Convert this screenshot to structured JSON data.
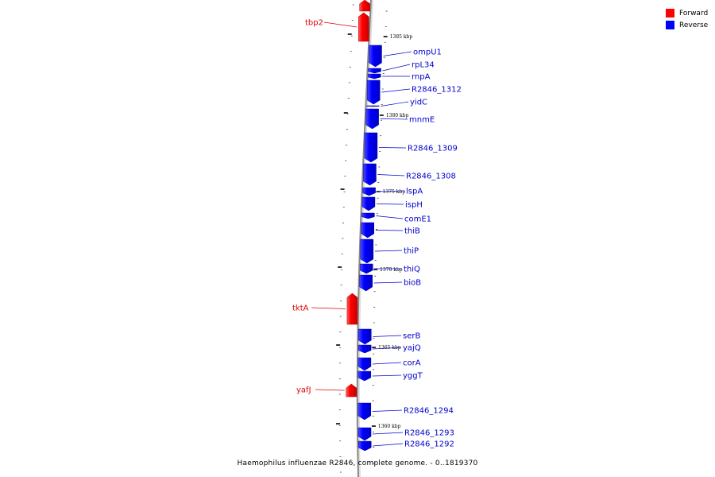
{
  "legend": {
    "forward_label": "Forward",
    "reverse_label": "Reverse",
    "forward_color": "#ff0000",
    "reverse_color": "#0000ff"
  },
  "caption": "Haemophilus influenzae R2846, complete genome. - 0..1819370",
  "ticks": [
    {
      "label": "1385 kbp"
    },
    {
      "label": "1380 kbp"
    },
    {
      "label": "1375 kbp"
    },
    {
      "label": "1370 kbp"
    },
    {
      "label": "1365 kbp"
    },
    {
      "label": "1360 kbp"
    }
  ],
  "genes": [
    {
      "name": "",
      "strand": "forward"
    },
    {
      "name": "tbp2",
      "strand": "forward"
    },
    {
      "name": "ompU1",
      "strand": "reverse"
    },
    {
      "name": "rpL34",
      "strand": "reverse"
    },
    {
      "name": "rnpA",
      "strand": "reverse"
    },
    {
      "name": "R2846_1312",
      "strand": "reverse"
    },
    {
      "name": "yidC",
      "strand": "reverse"
    },
    {
      "name": "mnmE",
      "strand": "reverse"
    },
    {
      "name": "R2846_1309",
      "strand": "reverse"
    },
    {
      "name": "R2846_1308",
      "strand": "reverse"
    },
    {
      "name": "lspA",
      "strand": "reverse"
    },
    {
      "name": "ispH",
      "strand": "reverse"
    },
    {
      "name": "comE1",
      "strand": "reverse"
    },
    {
      "name": "thiB",
      "strand": "reverse"
    },
    {
      "name": "thiP",
      "strand": "reverse"
    },
    {
      "name": "thiQ",
      "strand": "reverse"
    },
    {
      "name": "bioB",
      "strand": "reverse"
    },
    {
      "name": "tktA",
      "strand": "forward"
    },
    {
      "name": "serB",
      "strand": "reverse"
    },
    {
      "name": "yajQ",
      "strand": "reverse"
    },
    {
      "name": "corA",
      "strand": "reverse"
    },
    {
      "name": "yggT",
      "strand": "reverse"
    },
    {
      "name": "yafJ",
      "strand": "forward"
    },
    {
      "name": "R2846_1294",
      "strand": "reverse"
    },
    {
      "name": "R2846_1293",
      "strand": "reverse"
    },
    {
      "name": "R2846_1292",
      "strand": "reverse"
    }
  ]
}
